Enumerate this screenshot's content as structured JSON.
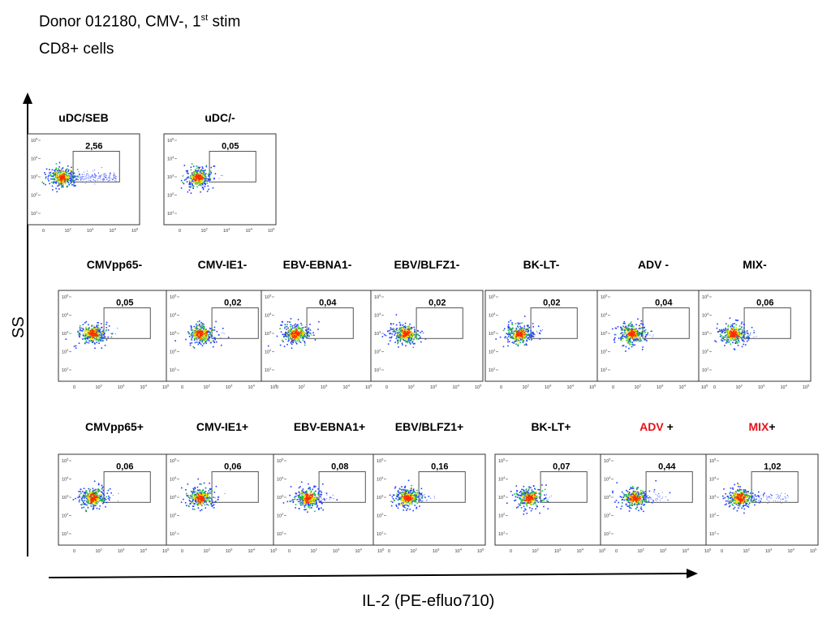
{
  "header": {
    "line1_main": "Donor 012180, CMV-, 1",
    "line1_sup": "st",
    "line1_end": " stim",
    "line2": "CD8+ cells"
  },
  "axes": {
    "y_label": "SS",
    "x_label": "IL-2 (PE-efluo710)",
    "x_ticks": [
      "0",
      "10",
      "10",
      "10",
      "10"
    ],
    "x_tick_exps": [
      "",
      "2",
      "3",
      "4",
      "5"
    ],
    "y_ticks": [
      "10",
      "10",
      "10",
      "10",
      "10"
    ],
    "y_tick_exps": [
      "5",
      "4",
      "3",
      "2",
      "1"
    ]
  },
  "colors": {
    "highlight": "#e8111a",
    "density_core": "#ff2a00",
    "density_mid": "#ffe000",
    "density_outer": "#22c040",
    "density_edge": "#1f3cff"
  },
  "chart_data": {
    "type": "scatter",
    "description_scale": "log",
    "panels": [
      {
        "title": "uDC/SEB",
        "gate_value": "2,56",
        "row": 0
      },
      {
        "title": "uDC/-",
        "gate_value": "0,05",
        "row": 0
      },
      {
        "title": "CMVpp65-",
        "gate_value": "0,05",
        "row": 1
      },
      {
        "title": "CMV-IE1-",
        "gate_value": "0,02",
        "row": 1
      },
      {
        "title": "EBV-EBNA1-",
        "gate_value": "0,04",
        "row": 1
      },
      {
        "title": "EBV/BLFZ1-",
        "gate_value": "0,02",
        "row": 1
      },
      {
        "title": "BK-LT-",
        "gate_value": "0,02",
        "row": 1
      },
      {
        "title": "ADV -",
        "gate_value": "0,04",
        "row": 1
      },
      {
        "title": "MIX-",
        "gate_value": "0,06",
        "row": 1
      },
      {
        "title": "CMVpp65+",
        "gate_value": "0,06",
        "row": 2
      },
      {
        "title": "CMV-IE1+",
        "gate_value": "0,06",
        "row": 2
      },
      {
        "title": "EBV-EBNA1+",
        "gate_value": "0,08",
        "row": 2
      },
      {
        "title": "EBV/BLFZ1+",
        "gate_value": "0,16",
        "row": 2
      },
      {
        "title": "BK-LT+",
        "gate_value": "0,07",
        "row": 2
      },
      {
        "title": "ADV +",
        "title_red": "ADV",
        "title_rest": " +",
        "gate_value": "0,44",
        "row": 2
      },
      {
        "title": "MIX+",
        "title_red": "MIX",
        "title_rest": "+",
        "gate_value": "1,02",
        "row": 2
      }
    ]
  }
}
